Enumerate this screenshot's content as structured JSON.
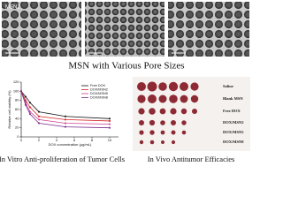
{
  "tem": {
    "label": "MSN2"
  },
  "captions": {
    "top": "MSN with Various Pore Sizes",
    "left": "In Vitro Anti-proliferation of Tumor Cells",
    "right": "In Vivo Antitumor Efficacies"
  },
  "tumor_photo": {
    "labels": [
      "Saline",
      "Blank MSN",
      "Free DOX",
      "DOX/MSN2",
      "DOX/MSN5",
      "DOX/MSN8"
    ]
  },
  "chart_data": {
    "type": "line",
    "x_label": "DOX concentration (μg/mL)",
    "y_label": "Relative cell viability (%)",
    "x": [
      0,
      0.5,
      1,
      2,
      5,
      10
    ],
    "series": [
      {
        "name": "Free DOX",
        "color": "#111111",
        "values": [
          100,
          88,
          75,
          55,
          45,
          40
        ]
      },
      {
        "name": "DOX/MSN2",
        "color": "#d42020",
        "values": [
          100,
          80,
          65,
          45,
          38,
          35
        ]
      },
      {
        "name": "DOX/MSN5",
        "color": "#d04090",
        "values": [
          100,
          75,
          55,
          38,
          30,
          28
        ]
      },
      {
        "name": "DOX/MSN8",
        "color": "#7a2a8a",
        "values": [
          100,
          70,
          50,
          30,
          22,
          20
        ]
      }
    ],
    "xlim": [
      0,
      11
    ],
    "xticks": [
      0,
      2,
      4,
      6,
      8,
      10
    ],
    "ylim": [
      0,
      120
    ],
    "yticks": [
      0,
      20,
      40,
      60,
      80,
      100,
      120
    ]
  }
}
